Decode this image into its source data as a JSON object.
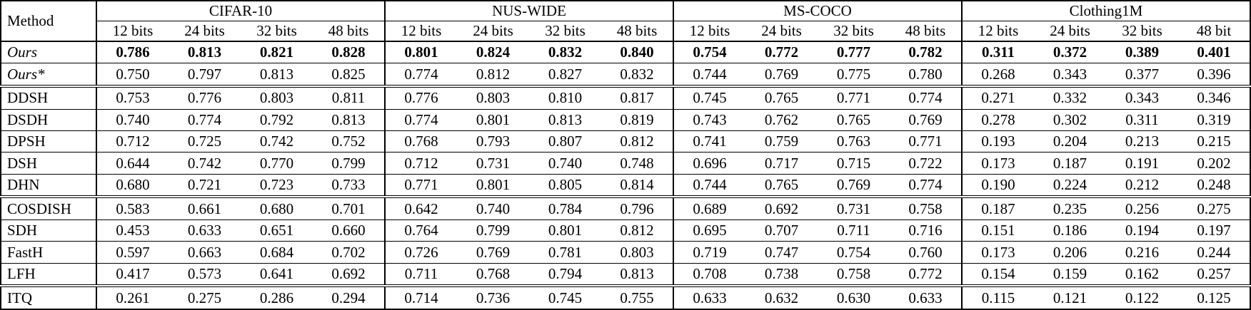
{
  "table": {
    "method_header": "Method",
    "groups": [
      {
        "label": "CIFAR-10",
        "bits": [
          "12 bits",
          "24 bits",
          "32 bits",
          "48 bits"
        ]
      },
      {
        "label": "NUS-WIDE",
        "bits": [
          "12 bits",
          "24 bits",
          "32 bits",
          "48 bits"
        ]
      },
      {
        "label": "MS-COCO",
        "bits": [
          "12 bits",
          "24 bits",
          "32 bits",
          "48 bits"
        ]
      },
      {
        "label": "Clothing1M",
        "bits": [
          "12 bits",
          "24 bits",
          "32 bits",
          "48 bit"
        ]
      }
    ],
    "rows": [
      {
        "method": "Ours",
        "italic": true,
        "bold_values": true,
        "separator_below": false,
        "values": [
          "0.786",
          "0.813",
          "0.821",
          "0.828",
          "0.801",
          "0.824",
          "0.832",
          "0.840",
          "0.754",
          "0.772",
          "0.777",
          "0.782",
          "0.311",
          "0.372",
          "0.389",
          "0.401"
        ]
      },
      {
        "method": "Ours*",
        "italic": true,
        "bold_values": false,
        "separator_below": true,
        "values": [
          "0.750",
          "0.797",
          "0.813",
          "0.825",
          "0.774",
          "0.812",
          "0.827",
          "0.832",
          "0.744",
          "0.769",
          "0.775",
          "0.780",
          "0.268",
          "0.343",
          "0.377",
          "0.396"
        ]
      },
      {
        "method": "DDSH",
        "italic": false,
        "bold_values": false,
        "separator_below": false,
        "values": [
          "0.753",
          "0.776",
          "0.803",
          "0.811",
          "0.776",
          "0.803",
          "0.810",
          "0.817",
          "0.745",
          "0.765",
          "0.771",
          "0.774",
          "0.271",
          "0.332",
          "0.343",
          "0.346"
        ]
      },
      {
        "method": "DSDH",
        "italic": false,
        "bold_values": false,
        "separator_below": false,
        "values": [
          "0.740",
          "0.774",
          "0.792",
          "0.813",
          "0.774",
          "0.801",
          "0.813",
          "0.819",
          "0.743",
          "0.762",
          "0.765",
          "0.769",
          "0.278",
          "0.302",
          "0.311",
          "0.319"
        ]
      },
      {
        "method": "DPSH",
        "italic": false,
        "bold_values": false,
        "separator_below": false,
        "values": [
          "0.712",
          "0.725",
          "0.742",
          "0.752",
          "0.768",
          "0.793",
          "0.807",
          "0.812",
          "0.741",
          "0.759",
          "0.763",
          "0.771",
          "0.193",
          "0.204",
          "0.213",
          "0.215"
        ]
      },
      {
        "method": "DSH",
        "italic": false,
        "bold_values": false,
        "separator_below": false,
        "values": [
          "0.644",
          "0.742",
          "0.770",
          "0.799",
          "0.712",
          "0.731",
          "0.740",
          "0.748",
          "0.696",
          "0.717",
          "0.715",
          "0.722",
          "0.173",
          "0.187",
          "0.191",
          "0.202"
        ]
      },
      {
        "method": "DHN",
        "italic": false,
        "bold_values": false,
        "separator_below": true,
        "values": [
          "0.680",
          "0.721",
          "0.723",
          "0.733",
          "0.771",
          "0.801",
          "0.805",
          "0.814",
          "0.744",
          "0.765",
          "0.769",
          "0.774",
          "0.190",
          "0.224",
          "0.212",
          "0.248"
        ]
      },
      {
        "method": "COSDISH",
        "italic": false,
        "bold_values": false,
        "separator_below": false,
        "values": [
          "0.583",
          "0.661",
          "0.680",
          "0.701",
          "0.642",
          "0.740",
          "0.784",
          "0.796",
          "0.689",
          "0.692",
          "0.731",
          "0.758",
          "0.187",
          "0.235",
          "0.256",
          "0.275"
        ]
      },
      {
        "method": "SDH",
        "italic": false,
        "bold_values": false,
        "separator_below": false,
        "values": [
          "0.453",
          "0.633",
          "0.651",
          "0.660",
          "0.764",
          "0.799",
          "0.801",
          "0.812",
          "0.695",
          "0.707",
          "0.711",
          "0.716",
          "0.151",
          "0.186",
          "0.194",
          "0.197"
        ]
      },
      {
        "method": "FastH",
        "italic": false,
        "bold_values": false,
        "separator_below": false,
        "values": [
          "0.597",
          "0.663",
          "0.684",
          "0.702",
          "0.726",
          "0.769",
          "0.781",
          "0.803",
          "0.719",
          "0.747",
          "0.754",
          "0.760",
          "0.173",
          "0.206",
          "0.216",
          "0.244"
        ]
      },
      {
        "method": "LFH",
        "italic": false,
        "bold_values": false,
        "separator_below": true,
        "values": [
          "0.417",
          "0.573",
          "0.641",
          "0.692",
          "0.711",
          "0.768",
          "0.794",
          "0.813",
          "0.708",
          "0.738",
          "0.758",
          "0.772",
          "0.154",
          "0.159",
          "0.162",
          "0.257"
        ]
      },
      {
        "method": "ITQ",
        "italic": false,
        "bold_values": false,
        "separator_below": false,
        "values": [
          "0.261",
          "0.275",
          "0.286",
          "0.294",
          "0.714",
          "0.736",
          "0.745",
          "0.755",
          "0.633",
          "0.632",
          "0.630",
          "0.633",
          "0.115",
          "0.121",
          "0.122",
          "0.125"
        ]
      }
    ]
  }
}
